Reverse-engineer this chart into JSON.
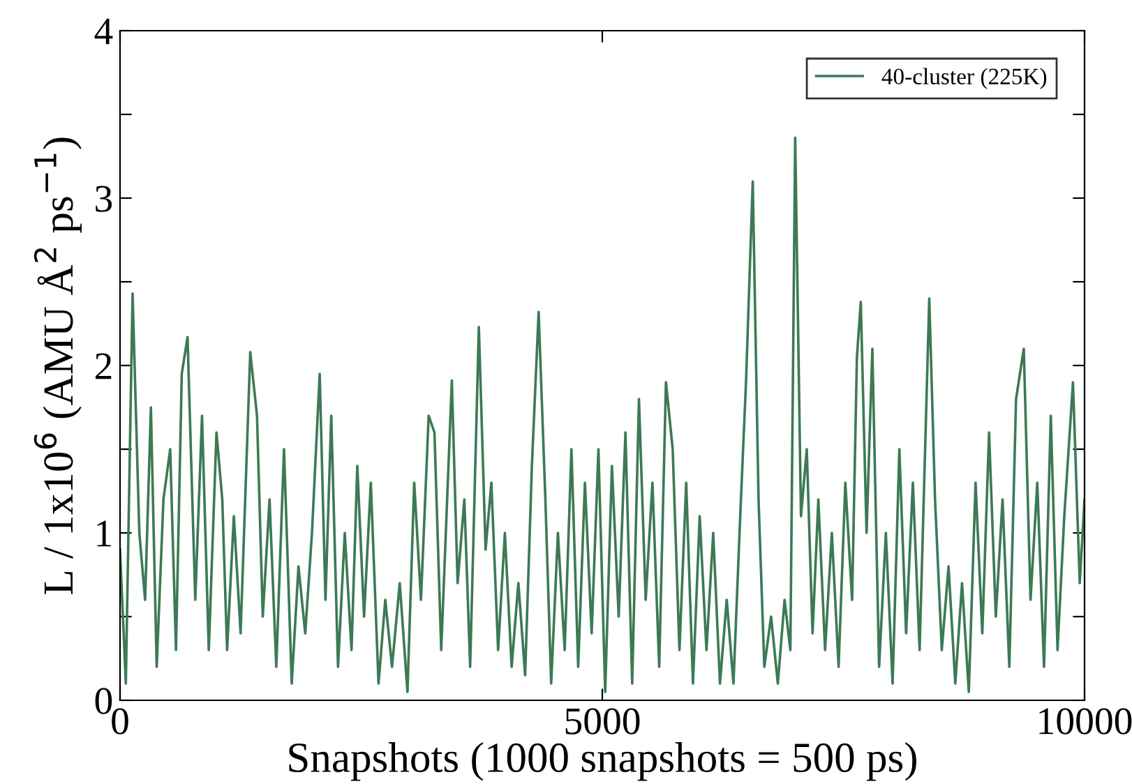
{
  "chart_data": {
    "type": "line",
    "xlabel": "Snapshots (1000 snapshots = 500 ps)",
    "ylabel": "L / 1x10$^{6}$ (AMU Å$^{2}$ ps$^{−1}$)",
    "xlim": [
      0,
      10000
    ],
    "ylim": [
      0,
      4
    ],
    "xticks": [
      0,
      5000,
      10000
    ],
    "yticks": [
      0,
      {
        "value": 0.5,
        "label": null
      },
      1,
      {
        "value": 1.5,
        "label": null
      },
      2,
      {
        "value": 2.5,
        "label": null
      },
      3,
      {
        "value": 3.5,
        "label": null
      },
      4
    ],
    "grid": false,
    "legend": "top right",
    "line_style": "solid",
    "marker": "none",
    "series": [
      {
        "name": "40-cluster (225K)",
        "color": "#3c7a55",
        "x": [
          0,
          60,
          130,
          200,
          260,
          320,
          380,
          450,
          520,
          580,
          640,
          700,
          780,
          850,
          920,
          1000,
          1060,
          1110,
          1180,
          1250,
          1350,
          1420,
          1480,
          1550,
          1620,
          1700,
          1780,
          1850,
          1920,
          1990,
          2070,
          2130,
          2190,
          2260,
          2330,
          2400,
          2460,
          2530,
          2600,
          2680,
          2750,
          2820,
          2900,
          2980,
          3050,
          3120,
          3200,
          3260,
          3330,
          3440,
          3500,
          3570,
          3630,
          3720,
          3790,
          3850,
          3920,
          3990,
          4060,
          4130,
          4200,
          4270,
          4340,
          4410,
          4470,
          4540,
          4610,
          4680,
          4750,
          4820,
          4890,
          4960,
          5030,
          5100,
          5170,
          5240,
          5310,
          5380,
          5450,
          5520,
          5590,
          5660,
          5730,
          5800,
          5870,
          5940,
          6010,
          6080,
          6150,
          6220,
          6290,
          6360,
          6430,
          6490,
          6560,
          6620,
          6680,
          6750,
          6820,
          6890,
          6950,
          7000,
          7060,
          7120,
          7180,
          7240,
          7310,
          7380,
          7450,
          7520,
          7590,
          7640,
          7680,
          7740,
          7800,
          7870,
          7940,
          8010,
          8080,
          8150,
          8220,
          8290,
          8390,
          8450,
          8520,
          8590,
          8660,
          8730,
          8800,
          8870,
          8940,
          9010,
          9080,
          9150,
          9220,
          9290,
          9370,
          9440,
          9510,
          9580,
          9650,
          9720,
          9790,
          9880,
          9950,
          10000
        ],
        "values": [
          0.9,
          0.1,
          2.43,
          1.0,
          0.6,
          1.75,
          0.2,
          1.2,
          1.5,
          0.3,
          1.95,
          2.17,
          0.6,
          1.7,
          0.3,
          1.6,
          1.2,
          0.3,
          1.1,
          0.4,
          2.08,
          1.7,
          0.5,
          1.2,
          0.2,
          1.5,
          0.1,
          0.8,
          0.4,
          1.0,
          1.95,
          0.6,
          1.7,
          0.2,
          1.0,
          0.3,
          1.4,
          0.5,
          1.3,
          0.1,
          0.6,
          0.2,
          0.7,
          0.05,
          1.3,
          0.6,
          1.7,
          1.6,
          0.3,
          1.91,
          0.7,
          1.2,
          0.2,
          2.23,
          0.9,
          1.3,
          0.3,
          1.0,
          0.2,
          0.7,
          0.15,
          1.4,
          2.32,
          1.2,
          0.1,
          1.0,
          0.3,
          1.5,
          0.2,
          1.3,
          0.4,
          1.5,
          0.05,
          1.4,
          0.5,
          1.6,
          0.1,
          1.8,
          0.6,
          1.3,
          0.2,
          1.9,
          1.5,
          0.3,
          1.3,
          0.1,
          1.1,
          0.3,
          1.0,
          0.1,
          0.6,
          0.1,
          1.1,
          1.9,
          3.1,
          1.2,
          0.2,
          0.5,
          0.1,
          0.6,
          0.3,
          3.36,
          1.1,
          1.5,
          0.4,
          1.2,
          0.3,
          1.0,
          0.2,
          1.3,
          0.6,
          2.05,
          2.38,
          1.0,
          2.1,
          0.2,
          1.0,
          0.1,
          1.5,
          0.4,
          1.3,
          0.3,
          2.4,
          1.2,
          0.3,
          0.8,
          0.1,
          0.7,
          0.05,
          1.3,
          0.4,
          1.6,
          0.5,
          1.2,
          0.2,
          1.8,
          2.1,
          0.6,
          1.3,
          0.2,
          1.7,
          0.3,
          1.1,
          1.9,
          0.7,
          1.2
        ]
      }
    ]
  }
}
